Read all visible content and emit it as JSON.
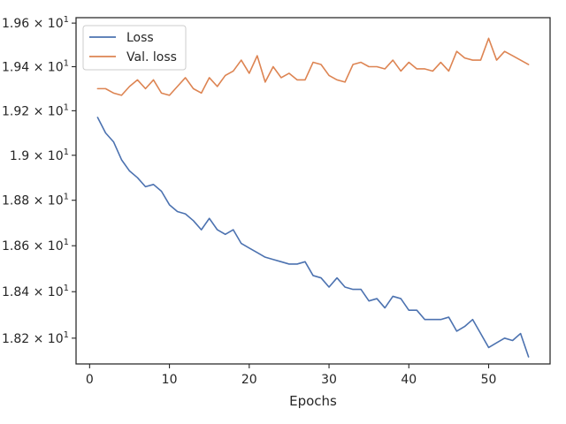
{
  "chart_data": {
    "type": "line",
    "xlabel": "Epochs",
    "ylabel": "",
    "yscale": "log",
    "grid": false,
    "legend_position": "top-left",
    "xlim": [
      -1.7,
      57.7
    ],
    "ylim": [
      18.09,
      19.625
    ],
    "xticks": [
      0,
      10,
      20,
      30,
      40,
      50
    ],
    "yticks": [
      {
        "value": 18.2,
        "base": "1.82",
        "exp": "1"
      },
      {
        "value": 18.4,
        "base": "1.84",
        "exp": "1"
      },
      {
        "value": 18.6,
        "base": "1.86",
        "exp": "1"
      },
      {
        "value": 18.8,
        "base": "1.88",
        "exp": "1"
      },
      {
        "value": 19.0,
        "base": "1.9",
        "exp": "1"
      },
      {
        "value": 19.2,
        "base": "1.92",
        "exp": "1"
      },
      {
        "value": 19.4,
        "base": "1.94",
        "exp": "1"
      },
      {
        "value": 19.6,
        "base": "1.96",
        "exp": "1"
      }
    ],
    "x": [
      1,
      2,
      3,
      4,
      5,
      6,
      7,
      8,
      9,
      10,
      11,
      12,
      13,
      14,
      15,
      16,
      17,
      18,
      19,
      20,
      21,
      22,
      23,
      24,
      25,
      26,
      27,
      28,
      29,
      30,
      31,
      32,
      33,
      34,
      35,
      36,
      37,
      38,
      39,
      40,
      41,
      42,
      43,
      44,
      45,
      46,
      47,
      48,
      49,
      50,
      51,
      52,
      53,
      54,
      55
    ],
    "series": [
      {
        "name": "Loss",
        "color": "#4c72b0",
        "values": [
          19.17,
          19.1,
          19.06,
          18.98,
          18.93,
          18.9,
          18.86,
          18.87,
          18.84,
          18.78,
          18.75,
          18.74,
          18.71,
          18.67,
          18.72,
          18.67,
          18.65,
          18.67,
          18.61,
          18.59,
          18.57,
          18.55,
          18.54,
          18.53,
          18.52,
          18.52,
          18.53,
          18.47,
          18.46,
          18.42,
          18.46,
          18.42,
          18.41,
          18.41,
          18.36,
          18.37,
          18.33,
          18.38,
          18.37,
          18.32,
          18.32,
          18.28,
          18.28,
          18.28,
          18.29,
          18.23,
          18.25,
          18.28,
          18.22,
          18.16,
          18.18,
          18.2,
          18.19,
          18.22,
          18.12
        ]
      },
      {
        "name": "Val. loss",
        "color": "#dd8452",
        "values": [
          19.3,
          19.3,
          19.28,
          19.27,
          19.31,
          19.34,
          19.3,
          19.34,
          19.28,
          19.27,
          19.31,
          19.35,
          19.3,
          19.28,
          19.35,
          19.31,
          19.36,
          19.38,
          19.43,
          19.37,
          19.45,
          19.33,
          19.4,
          19.35,
          19.37,
          19.34,
          19.34,
          19.42,
          19.41,
          19.36,
          19.34,
          19.33,
          19.41,
          19.42,
          19.4,
          19.4,
          19.39,
          19.43,
          19.38,
          19.42,
          19.39,
          19.39,
          19.38,
          19.42,
          19.38,
          19.47,
          19.44,
          19.43,
          19.43,
          19.53,
          19.43,
          19.47,
          19.45,
          19.43,
          19.41
        ]
      }
    ]
  }
}
